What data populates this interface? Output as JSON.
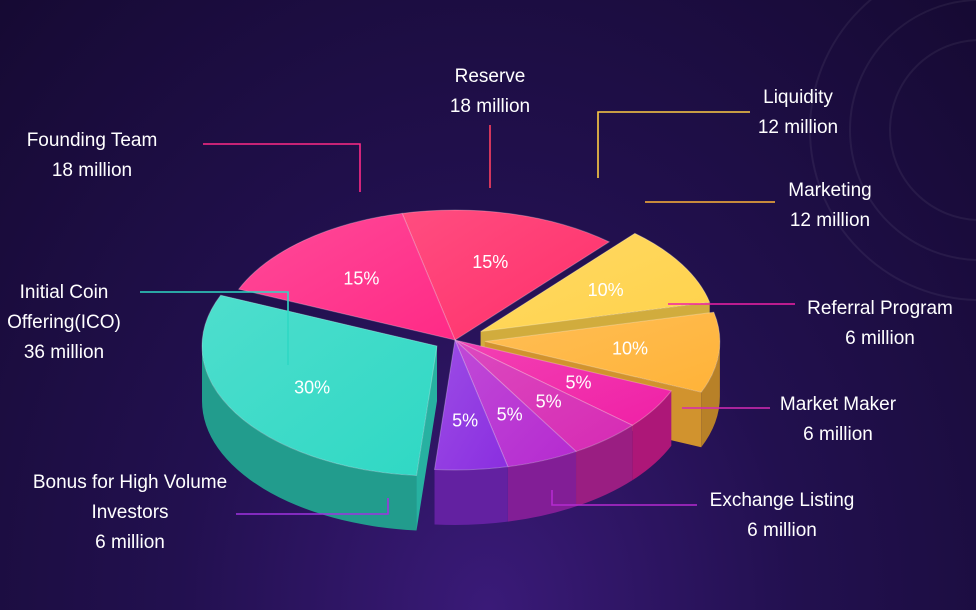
{
  "chart_data": {
    "type": "pie",
    "unit": "million",
    "slices": [
      {
        "label_lines": [
          "Reserve",
          "18 million"
        ],
        "value": 18,
        "percent": "15%",
        "color": "#ff2e6a"
      },
      {
        "label_lines": [
          "Liquidity",
          "12 million"
        ],
        "value": 12,
        "percent": "10%",
        "color": "#ffd24a"
      },
      {
        "label_lines": [
          "Marketing",
          "12 million"
        ],
        "value": 12,
        "percent": "10%",
        "color": "#ffb338"
      },
      {
        "label_lines": [
          "Referral Program",
          "6 million"
        ],
        "value": 6,
        "percent": "5%",
        "color": "#f020a6"
      },
      {
        "label_lines": [
          "Market Maker",
          "6 million"
        ],
        "value": 6,
        "percent": "5%",
        "color": "#d62ab4"
      },
      {
        "label_lines": [
          "Exchange Listing",
          "6 million"
        ],
        "value": 6,
        "percent": "5%",
        "color": "#b52ad0"
      },
      {
        "label_lines": [
          "Bonus for High Volume",
          "Investors",
          "6 million"
        ],
        "value": 6,
        "percent": "5%",
        "color": "#8a2ee0"
      },
      {
        "label_lines": [
          "Initial Coin",
          "Offering(ICO)",
          "36 million"
        ],
        "value": 36,
        "percent": "30%",
        "color": "#2fd8c4"
      },
      {
        "label_lines": [
          "Founding Team",
          "18 million"
        ],
        "value": 18,
        "percent": "15%",
        "color": "#ff2a86"
      }
    ]
  }
}
